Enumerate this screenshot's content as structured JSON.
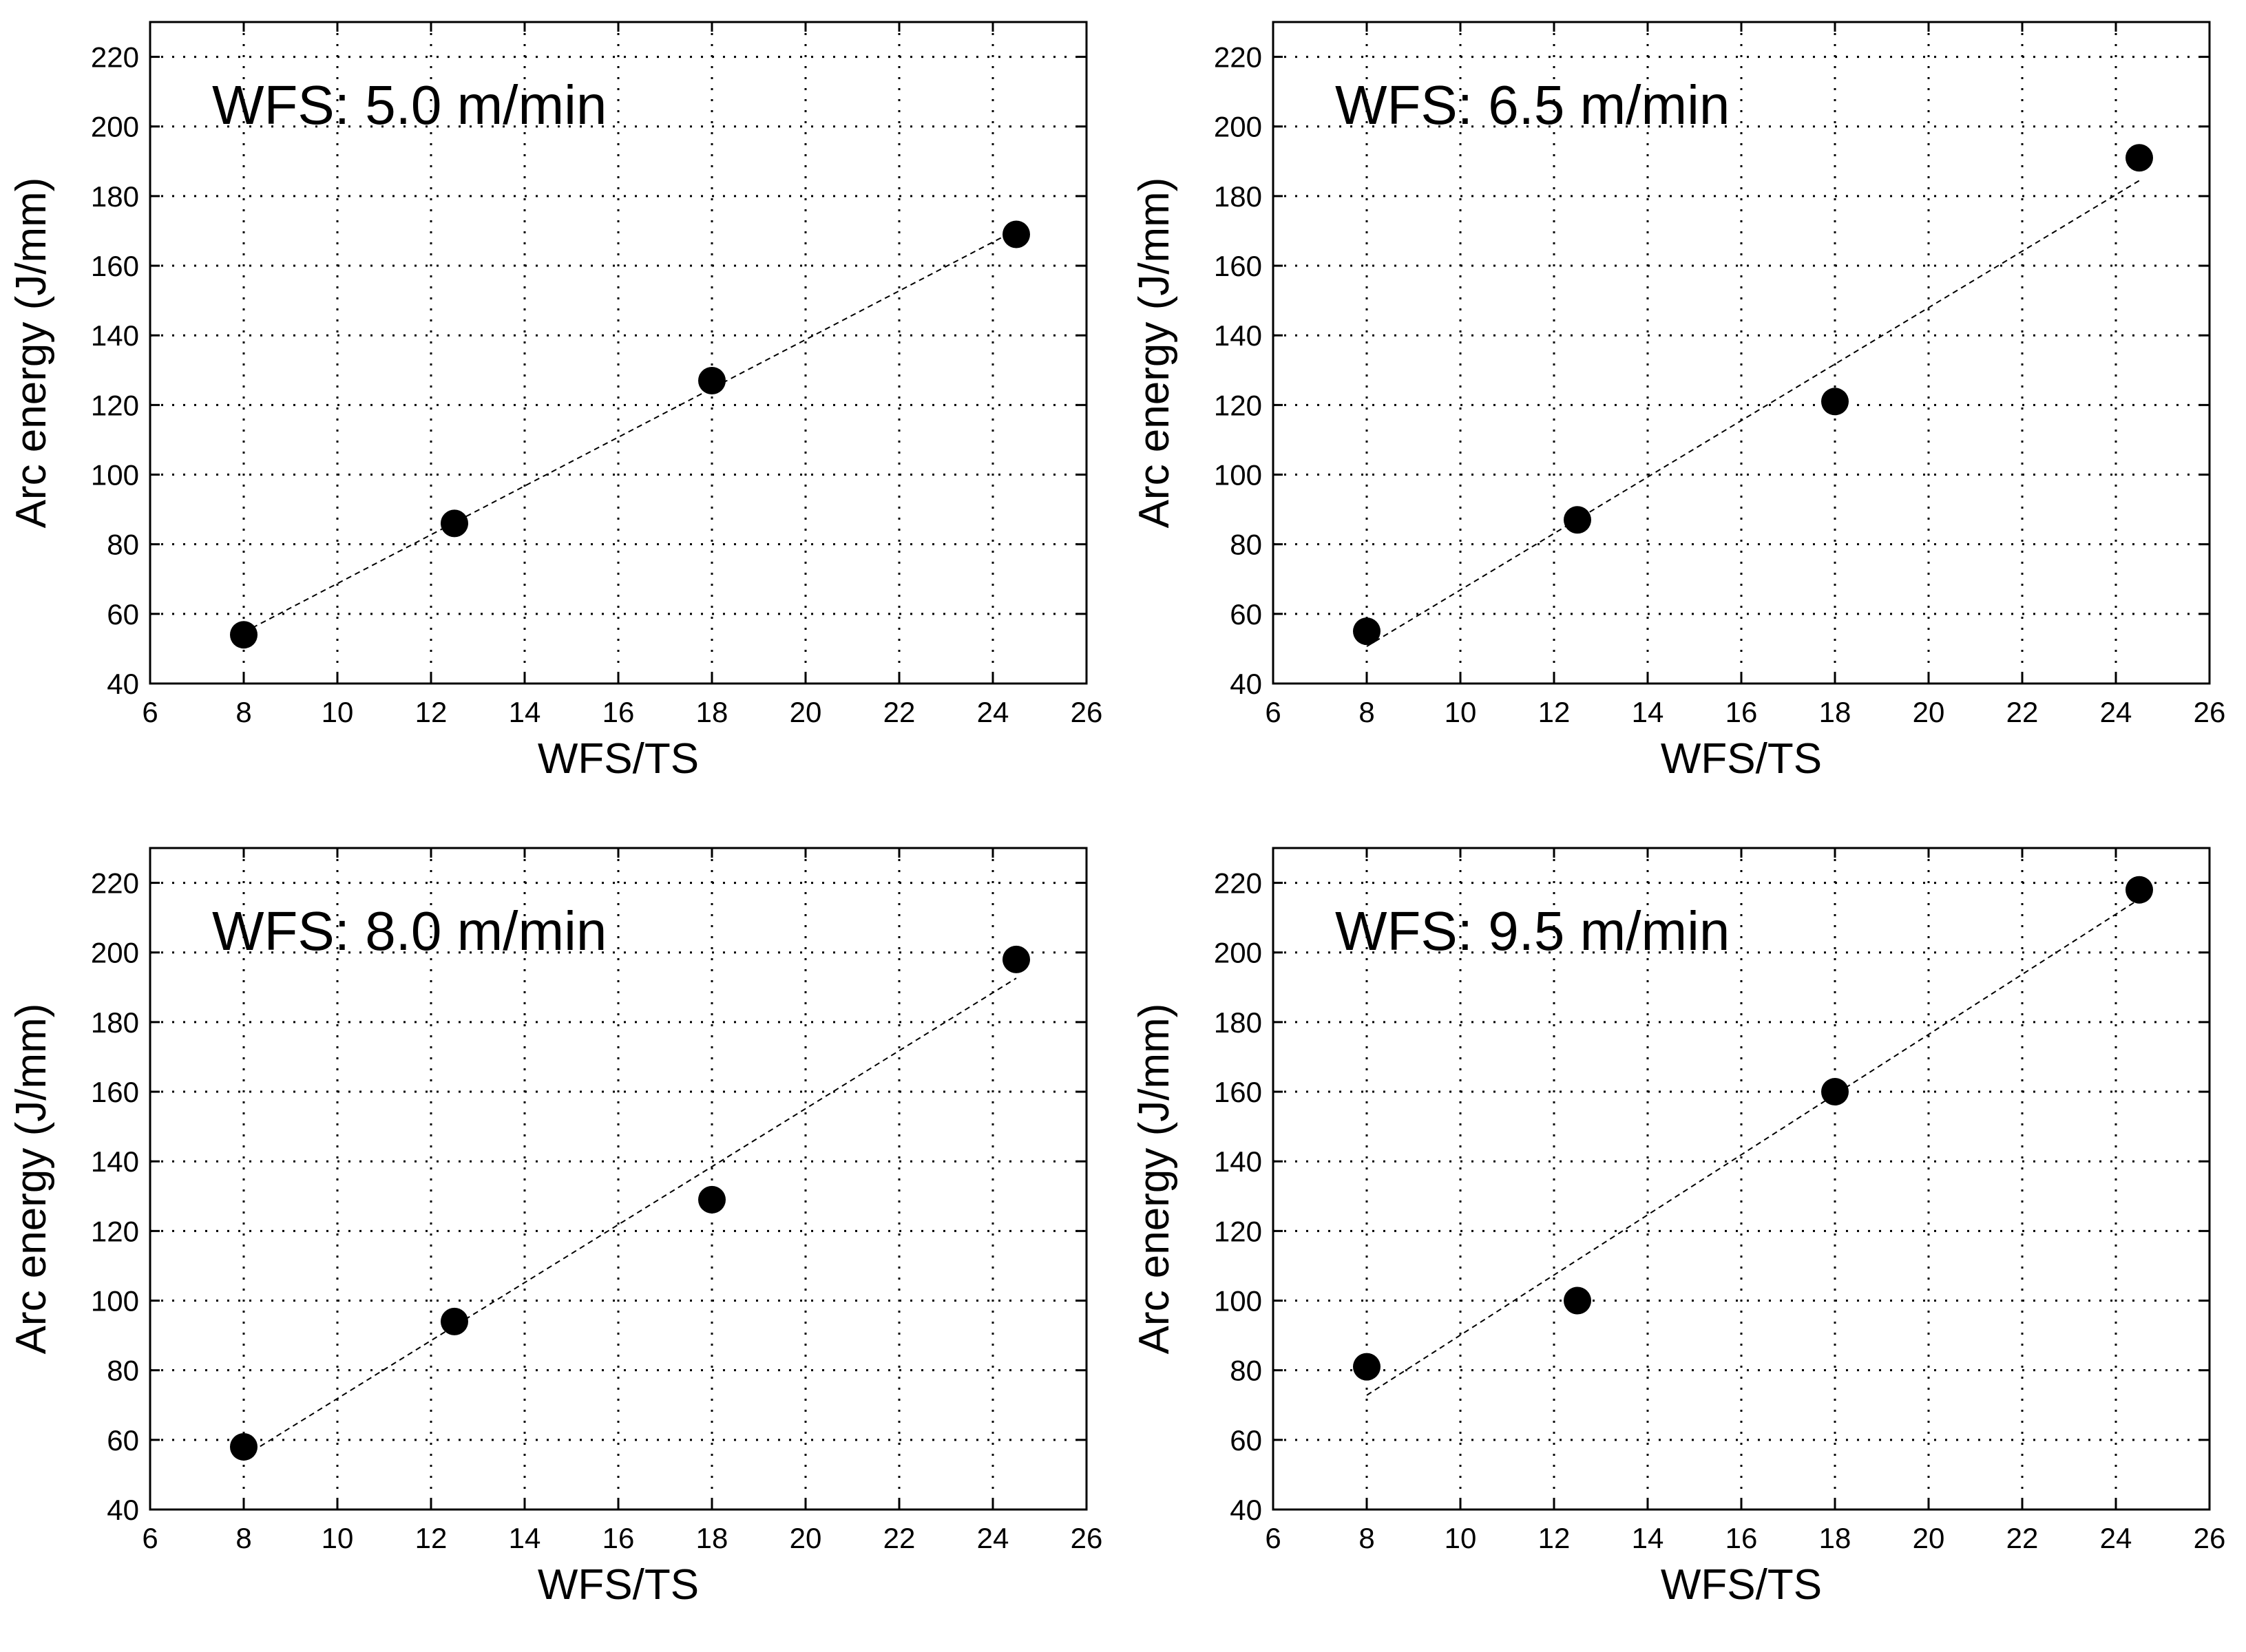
{
  "chart_data": [
    {
      "type": "scatter",
      "title": "WFS: 5.0 m/min",
      "xlabel": "WFS/TS",
      "ylabel": "Arc energy (J/mm)",
      "xlim": [
        6,
        26
      ],
      "ylim": [
        40,
        230
      ],
      "x_ticks": [
        "6",
        "8",
        "10",
        "12",
        "14",
        "16",
        "18",
        "20",
        "22",
        "24",
        "26"
      ],
      "y_ticks": [
        "40",
        "60",
        "80",
        "100",
        "120",
        "140",
        "160",
        "180",
        "200",
        "220"
      ],
      "grid": true,
      "trendline": "linear, dashed",
      "x": [
        8,
        12.5,
        18,
        24.5
      ],
      "y": [
        54,
        86,
        127,
        169
      ]
    },
    {
      "type": "scatter",
      "title": "WFS: 6.5 m/min",
      "xlabel": "WFS/TS",
      "ylabel": "Arc energy (J/mm)",
      "xlim": [
        6,
        26
      ],
      "ylim": [
        40,
        230
      ],
      "x_ticks": [
        "6",
        "8",
        "10",
        "12",
        "14",
        "16",
        "18",
        "20",
        "22",
        "24",
        "26"
      ],
      "y_ticks": [
        "40",
        "60",
        "80",
        "100",
        "120",
        "140",
        "160",
        "180",
        "200",
        "220"
      ],
      "grid": true,
      "trendline": "linear, dashed",
      "x": [
        8,
        12.5,
        18,
        24.5
      ],
      "y": [
        55,
        87,
        121,
        191
      ]
    },
    {
      "type": "scatter",
      "title": "WFS: 8.0 m/min",
      "xlabel": "WFS/TS",
      "ylabel": "Arc energy (J/mm)",
      "xlim": [
        6,
        26
      ],
      "ylim": [
        40,
        230
      ],
      "x_ticks": [
        "6",
        "8",
        "10",
        "12",
        "14",
        "16",
        "18",
        "20",
        "22",
        "24",
        "26"
      ],
      "y_ticks": [
        "40",
        "60",
        "80",
        "100",
        "120",
        "140",
        "160",
        "180",
        "200",
        "220"
      ],
      "grid": true,
      "trendline": "linear, dashed",
      "x": [
        8,
        12.5,
        18,
        24.5
      ],
      "y": [
        58,
        94,
        129,
        198
      ]
    },
    {
      "type": "scatter",
      "title": "WFS: 9.5 m/min",
      "xlabel": "WFS/TS",
      "ylabel": "Arc energy (J/mm)",
      "xlim": [
        6,
        26
      ],
      "ylim": [
        40,
        230
      ],
      "x_ticks": [
        "6",
        "8",
        "10",
        "12",
        "14",
        "16",
        "18",
        "20",
        "22",
        "24",
        "26"
      ],
      "y_ticks": [
        "40",
        "60",
        "80",
        "100",
        "120",
        "140",
        "160",
        "180",
        "200",
        "220"
      ],
      "grid": true,
      "trendline": "linear, dashed",
      "x": [
        8,
        12.5,
        18,
        24.5
      ],
      "y": [
        81,
        100,
        160,
        218
      ]
    }
  ]
}
